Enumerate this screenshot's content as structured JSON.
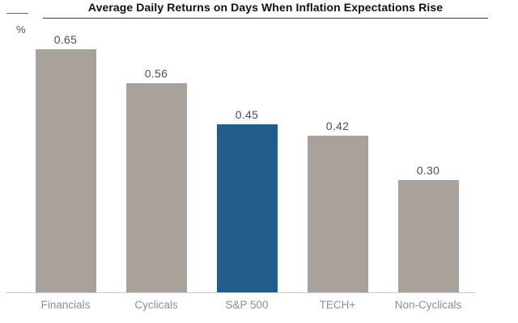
{
  "chart_data": {
    "type": "bar",
    "title": "Average Daily Returns on Days When Inflation Expectations Rise",
    "unit_label": "%",
    "categories": [
      "Financials",
      "Cyclicals",
      "S&P 500",
      "TECH+",
      "Non-Cyclicals"
    ],
    "values": [
      0.65,
      0.56,
      0.45,
      0.42,
      0.3
    ],
    "value_labels": [
      "0.65",
      "0.56",
      "0.45",
      "0.42",
      "0.30"
    ],
    "highlighted_category": "S&P 500",
    "ylim": [
      0,
      0.7
    ],
    "grid": false,
    "legend": false,
    "colors": {
      "bar": "#a9a29b",
      "highlight": "#235d8d",
      "value_label": "#4d4d4d",
      "category_label": "#8e8e8e",
      "baseline": "#cacaca",
      "title": "#111111",
      "title_underline": "#3a3a3a"
    }
  }
}
